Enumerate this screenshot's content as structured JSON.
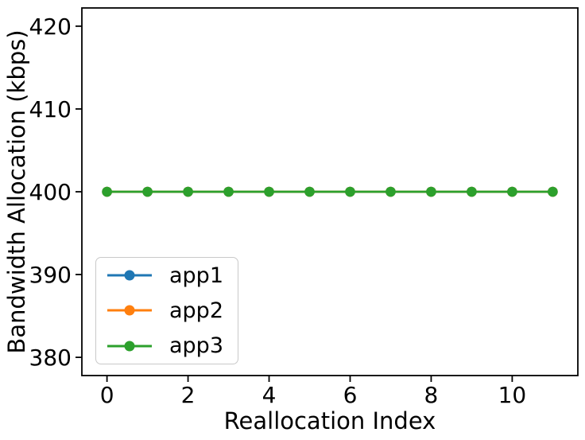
{
  "figure": {
    "background": "#ffffff"
  },
  "chart_data": {
    "type": "line",
    "xlabel": "Reallocation Index",
    "ylabel": "Bandwidth Allocation (kbps)",
    "x": [
      0,
      1,
      2,
      3,
      4,
      5,
      6,
      7,
      8,
      9,
      10,
      11
    ],
    "series": [
      {
        "name": "app1",
        "color": "#1f77b4",
        "values": [
          400,
          400,
          400,
          400,
          400,
          400,
          400,
          400,
          400,
          400,
          400,
          400
        ]
      },
      {
        "name": "app2",
        "color": "#ff7f0e",
        "values": [
          400,
          400,
          400,
          400,
          400,
          400,
          400,
          400,
          400,
          400,
          400,
          400
        ]
      },
      {
        "name": "app3",
        "color": "#2ca02c",
        "values": [
          400,
          400,
          400,
          400,
          400,
          400,
          400,
          400,
          400,
          400,
          400,
          400
        ]
      }
    ],
    "xticks": [
      0,
      2,
      4,
      6,
      8,
      10
    ],
    "yticks": [
      380,
      390,
      400,
      410,
      420
    ],
    "xlim": [
      -0.62,
      11.62
    ],
    "ylim": [
      377.8,
      422.2
    ],
    "grid": false,
    "marker": "circle",
    "legend_position": "lower-left",
    "axis_color": "#000000",
    "text_color": "#000000"
  }
}
